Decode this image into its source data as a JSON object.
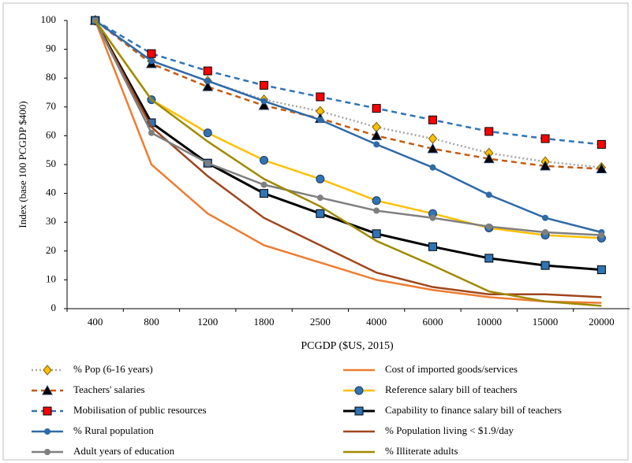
{
  "chart_data": {
    "type": "line",
    "y_label": "Index (base 100 PCGDP $400)",
    "x_label": "PCGDP ($US, 2015)",
    "categories": [
      "400",
      "800",
      "1200",
      "1800",
      "2500",
      "4000",
      "6000",
      "10000",
      "15000",
      "20000"
    ],
    "ylim": [
      0,
      100
    ],
    "yticks": [
      0,
      10,
      20,
      30,
      40,
      50,
      60,
      70,
      80,
      90,
      100
    ],
    "grid": false,
    "series": [
      {
        "name": "% Pop (6-16 years)",
        "color": "#a5a5a5",
        "dash": "dotted",
        "marker": {
          "shape": "diamond",
          "fill": "#ffc000"
        },
        "values": [
          100,
          86,
          79,
          72.5,
          68.5,
          63,
          59,
          54,
          51,
          49
        ]
      },
      {
        "name": "Cost of imported goods/services",
        "color": "#ed7d31",
        "dash": "solid",
        "marker": null,
        "values": [
          100,
          50,
          33,
          22,
          16,
          10,
          6.5,
          4,
          2.5,
          2
        ]
      },
      {
        "name": "Teachers' salaries",
        "color": "#c55a11",
        "dash": "dashed",
        "marker": {
          "shape": "triangle",
          "fill": "#000000"
        },
        "values": [
          100,
          85,
          77,
          70.5,
          66,
          60,
          55.5,
          52,
          49.5,
          48.5
        ]
      },
      {
        "name": "Reference salary bill of teachers",
        "color": "#ffc000",
        "dash": "solid",
        "marker": {
          "shape": "circle",
          "fill": "#2e75b6"
        },
        "values": [
          100,
          72.5,
          61,
          51.5,
          45,
          37.5,
          33,
          28,
          25.5,
          24.5
        ]
      },
      {
        "name": "Mobilisation of public resources",
        "color": "#2e75b6",
        "dash": "dashed",
        "marker": {
          "shape": "square",
          "fill": "#ff0000"
        },
        "values": [
          100,
          88.5,
          82.5,
          77.5,
          73.5,
          69.5,
          65.5,
          61.5,
          59,
          57
        ]
      },
      {
        "name": "Capability to finance salary bill of teachers",
        "color": "#000000",
        "dash": "solid",
        "marker": {
          "shape": "square",
          "fill": "#2e75b6"
        },
        "values": [
          100,
          64.5,
          50.5,
          40,
          33,
          26,
          21.5,
          17.5,
          15,
          13.5
        ]
      },
      {
        "name": "% Rural population",
        "color": "#2e6aa8",
        "dash": "solid",
        "marker": {
          "shape": "dot",
          "fill": "#2e6aa8"
        },
        "values": [
          100,
          86,
          79,
          72,
          65.5,
          57,
          49,
          39.5,
          31.5,
          26.5
        ]
      },
      {
        "name": "% Population living < $1.9/day",
        "color": "#a0461c",
        "dash": "solid",
        "marker": null,
        "values": [
          100,
          63,
          46,
          31.5,
          22,
          12.5,
          7.5,
          5,
          5,
          4
        ]
      },
      {
        "name": "Adult years of education",
        "color": "#7f7f7f",
        "dash": "solid",
        "marker": {
          "shape": "dot",
          "fill": "#7f7f7f"
        },
        "values": [
          100,
          61,
          50.5,
          43,
          38.5,
          34,
          31.5,
          28.5,
          26.5,
          25.5
        ]
      },
      {
        "name": "% Illiterate adults",
        "color": "#a08a00",
        "dash": "solid",
        "marker": null,
        "values": [
          100,
          72.5,
          58,
          45,
          35.5,
          23.5,
          15,
          6,
          2.5,
          1
        ]
      }
    ]
  }
}
